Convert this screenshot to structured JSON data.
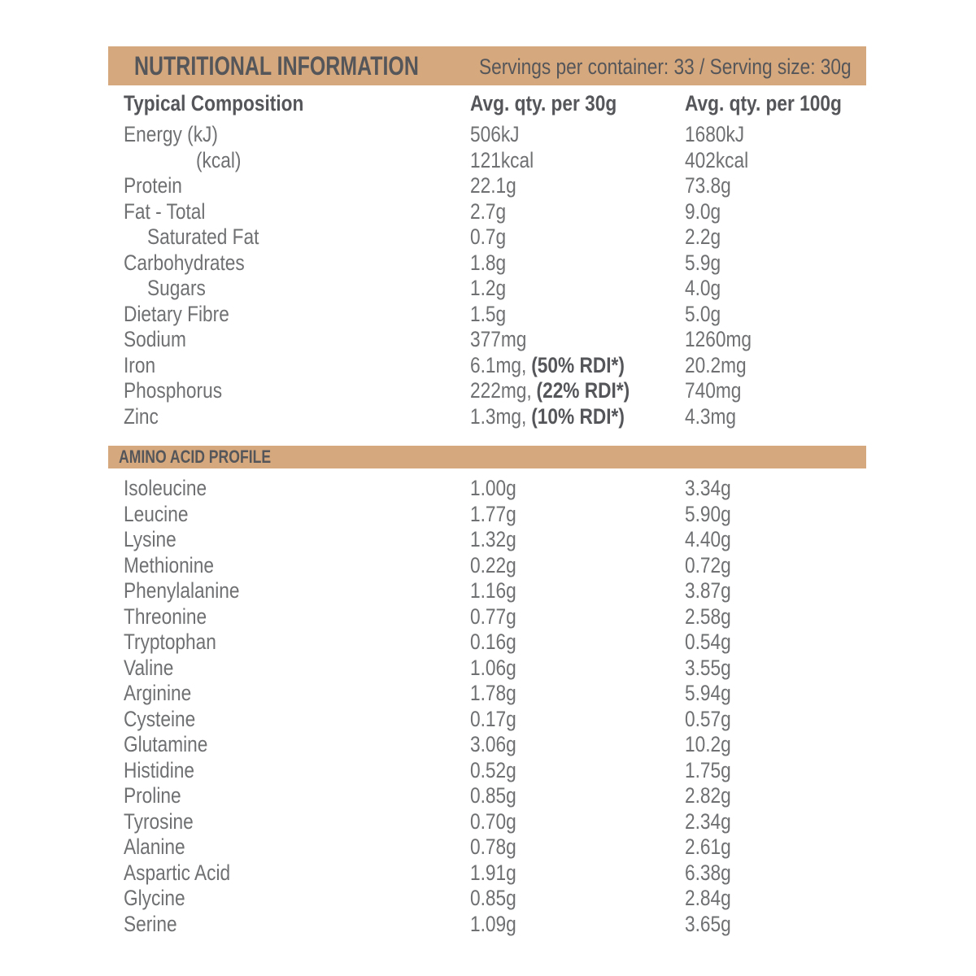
{
  "colors": {
    "bar_tan": "#D6A87D",
    "heading_text": "#55565A",
    "body_text": "#6F7072",
    "background": "#FFFFFF"
  },
  "header": {
    "title": "NUTRITIONAL INFORMATION",
    "servings": "Servings per container: 33 / Serving size: 30g"
  },
  "columns": {
    "label": "Typical Composition",
    "per30": "Avg. qty. per 30g",
    "per100": "Avg. qty. per 100g"
  },
  "composition": {
    "rows": [
      {
        "label": "Energy (kJ)",
        "indent": 0,
        "v30": "506kJ",
        "v100": "1680kJ"
      },
      {
        "label": "(kcal)",
        "indent": 2,
        "v30": "121kcal",
        "v100": "402kcal"
      },
      {
        "label": "Protein",
        "indent": 0,
        "v30": "22.1g",
        "v100": "73.8g"
      },
      {
        "label": "Fat - Total",
        "indent": 0,
        "v30": "2.7g",
        "v100": "9.0g"
      },
      {
        "label": "Saturated Fat",
        "indent": 1,
        "v30": "0.7g",
        "v100": "2.2g"
      },
      {
        "label": "Carbohydrates",
        "indent": 0,
        "v30": "1.8g",
        "v100": "5.9g"
      },
      {
        "label": "Sugars",
        "indent": 1,
        "v30": "1.2g",
        "v100": "4.0g"
      },
      {
        "label": "Dietary Fibre",
        "indent": 0,
        "v30": "1.5g",
        "v100": "5.0g"
      },
      {
        "label": "Sodium",
        "indent": 0,
        "v30": "377mg",
        "v100": "1260mg"
      },
      {
        "label": "Iron",
        "indent": 0,
        "v30": "6.1mg,",
        "rdi": "(50% RDI*)",
        "v100": "20.2mg"
      },
      {
        "label": "Phosphorus",
        "indent": 0,
        "v30": "222mg,",
        "rdi": "(22% RDI*)",
        "v100": "740mg"
      },
      {
        "label": "Zinc",
        "indent": 0,
        "v30": "1.3mg,",
        "rdi": "(10% RDI*)",
        "v100": "4.3mg"
      }
    ]
  },
  "amino": {
    "title": "AMINO ACID PROFILE",
    "rows": [
      {
        "label": "Isoleucine",
        "v30": "1.00g",
        "v100": "3.34g"
      },
      {
        "label": "Leucine",
        "v30": "1.77g",
        "v100": "5.90g"
      },
      {
        "label": "Lysine",
        "v30": "1.32g",
        "v100": "4.40g"
      },
      {
        "label": "Methionine",
        "v30": "0.22g",
        "v100": "0.72g"
      },
      {
        "label": "Phenylalanine",
        "v30": "1.16g",
        "v100": "3.87g"
      },
      {
        "label": "Threonine",
        "v30": "0.77g",
        "v100": "2.58g"
      },
      {
        "label": "Tryptophan",
        "v30": "0.16g",
        "v100": "0.54g"
      },
      {
        "label": "Valine",
        "v30": "1.06g",
        "v100": "3.55g"
      },
      {
        "label": "Arginine",
        "v30": "1.78g",
        "v100": "5.94g"
      },
      {
        "label": "Cysteine",
        "v30": "0.17g",
        "v100": "0.57g"
      },
      {
        "label": "Glutamine",
        "v30": "3.06g",
        "v100": "10.2g"
      },
      {
        "label": "Histidine",
        "v30": "0.52g",
        "v100": "1.75g"
      },
      {
        "label": "Proline",
        "v30": "0.85g",
        "v100": "2.82g"
      },
      {
        "label": "Tyrosine",
        "v30": "0.70g",
        "v100": "2.34g"
      },
      {
        "label": "Alanine",
        "v30": "0.78g",
        "v100": "2.61g"
      },
      {
        "label": "Aspartic Acid",
        "v30": "1.91g",
        "v100": "6.38g"
      },
      {
        "label": "Glycine",
        "v30": "0.85g",
        "v100": "2.84g"
      },
      {
        "label": "Serine",
        "v30": "1.09g",
        "v100": "3.65g"
      }
    ]
  }
}
